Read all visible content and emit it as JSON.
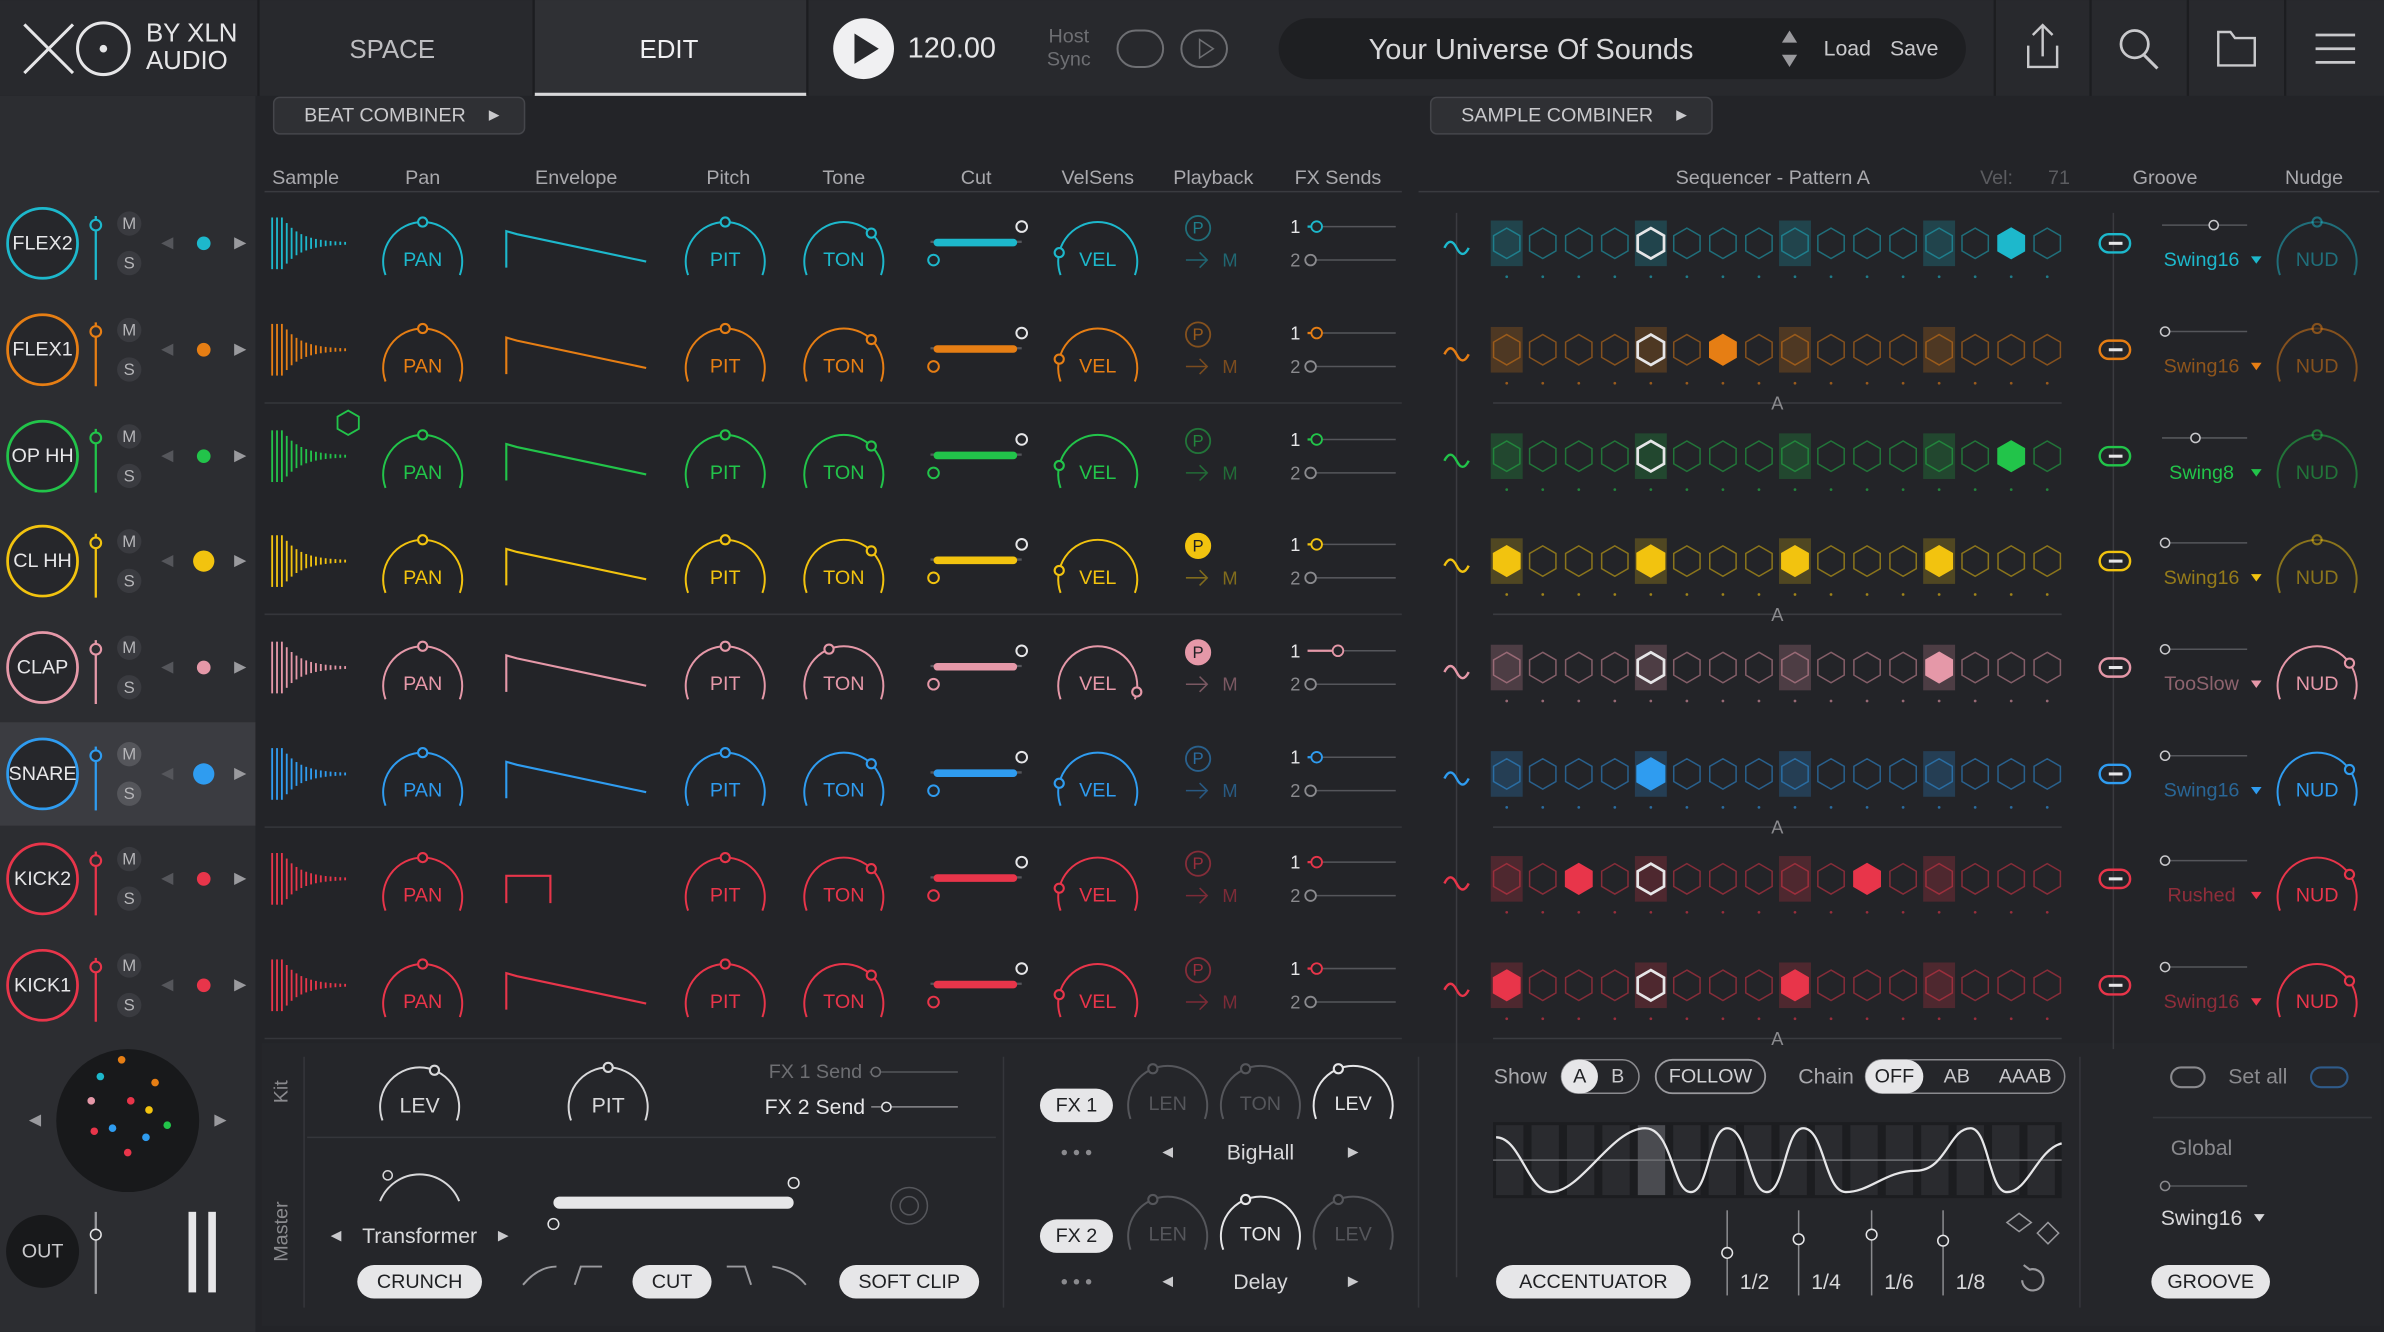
{
  "header": {
    "brand_top": "BY XLN",
    "brand_bottom": "AUDIO",
    "tabs": [
      "SPACE",
      "EDIT"
    ],
    "tempo": "120.00",
    "host_sync": [
      "Host",
      "Sync"
    ],
    "preset": "Your Universe Of Sounds",
    "load": "Load",
    "save": "Save"
  },
  "combiners": [
    "BEAT COMBINER",
    "SAMPLE COMBINER"
  ],
  "columns": {
    "sample": "Sample",
    "pan": "Pan",
    "envelope": "Envelope",
    "pitch": "Pitch",
    "tone": "Tone",
    "cut": "Cut",
    "velsens": "VelSens",
    "playback": "Playback",
    "fx_sends": "FX Sends",
    "sequencer": "Sequencer - Pattern A",
    "vel": "Vel:",
    "vel_value": "71",
    "groove": "Groove",
    "nudge": "Nudge"
  },
  "row_labels": {
    "mute": "M",
    "solo": "S",
    "knobs": [
      "PAN",
      "PIT",
      "TON",
      "VEL"
    ],
    "sends": [
      "1",
      "2"
    ],
    "playback": [
      "P",
      "M"
    ],
    "nudge": "NUD",
    "pattern": "A"
  },
  "tracks": [
    {
      "name": "FLEX2",
      "color": "#1db8cc",
      "groove": "Swing16",
      "steps": [
        0,
        0,
        0,
        0,
        0,
        0,
        0,
        0,
        0,
        0,
        0,
        0,
        0,
        0,
        1,
        0
      ]
    },
    {
      "name": "FLEX1",
      "color": "#e67e14",
      "groove": "Swing16",
      "steps": [
        0,
        0,
        0,
        0,
        0,
        0,
        1,
        0,
        0,
        0,
        0,
        0,
        0,
        0,
        0,
        0
      ]
    },
    {
      "name": "OP HH",
      "color": "#22c44a",
      "groove": "Swing8",
      "steps": [
        0,
        0,
        0,
        0,
        0,
        0,
        0,
        0,
        0,
        0,
        0,
        0,
        0,
        0,
        1,
        0
      ]
    },
    {
      "name": "CL HH",
      "color": "#f2c30f",
      "groove": "Swing16",
      "steps": [
        1,
        0,
        0,
        0,
        1,
        0,
        0,
        0,
        1,
        0,
        0,
        0,
        1,
        0,
        0,
        0
      ]
    },
    {
      "name": "CLAP",
      "color": "#e598a8",
      "groove": "TooSlow",
      "steps": [
        0,
        0,
        0,
        0,
        0,
        0,
        0,
        0,
        0,
        0,
        0,
        0,
        1,
        0,
        0,
        0
      ]
    },
    {
      "name": "SNARE",
      "color": "#2f9cf0",
      "groove": "Swing16",
      "steps": [
        0,
        0,
        0,
        0,
        1,
        0,
        0,
        0,
        0,
        0,
        0,
        0,
        0,
        0,
        0,
        0
      ]
    },
    {
      "name": "KICK2",
      "color": "#e8354a",
      "groove": "Rushed",
      "steps": [
        0,
        0,
        1,
        0,
        0,
        0,
        0,
        0,
        0,
        0,
        1,
        0,
        0,
        0,
        0,
        0
      ]
    },
    {
      "name": "KICK1",
      "color": "#e8354a",
      "groove": "Swing16",
      "steps": [
        1,
        0,
        0,
        0,
        0,
        0,
        0,
        0,
        1,
        0,
        0,
        0,
        0,
        0,
        0,
        0
      ]
    }
  ],
  "kit": {
    "label": "Kit",
    "knobs": [
      "LEV",
      "PIT"
    ],
    "fx1_send": "FX 1 Send",
    "fx2_send": "FX 2 Send"
  },
  "master": {
    "label": "Master",
    "preset": "Transformer",
    "buttons": [
      "CRUNCH",
      "CUT",
      "SOFT CLIP"
    ]
  },
  "fx": [
    {
      "name": "FX 1",
      "knobs": [
        "LEN",
        "TON",
        "LEV"
      ],
      "preset": "BigHall"
    },
    {
      "name": "FX 2",
      "knobs": [
        "LEN",
        "TON",
        "LEV"
      ],
      "preset": "Delay"
    }
  ],
  "sequencer_controls": {
    "show": "Show",
    "patterns": [
      "A",
      "B"
    ],
    "follow": "FOLLOW",
    "chain": "Chain",
    "chain_options": [
      "OFF",
      "AB",
      "AAAB"
    ],
    "accentuator": "ACCENTUATOR",
    "divisions": [
      "1/2",
      "1/4",
      "1/6",
      "1/8"
    ]
  },
  "groove_controls": {
    "set_all": "Set all",
    "global": "Global",
    "global_groove": "Swing16",
    "groove": "GROOVE"
  },
  "output": "OUT"
}
